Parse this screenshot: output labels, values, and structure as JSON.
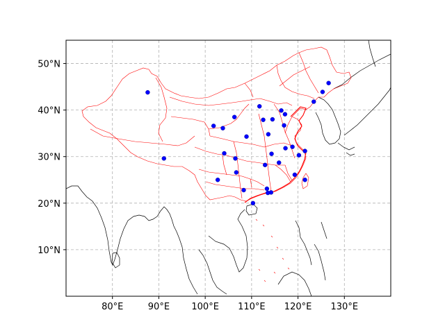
{
  "chart_data": {
    "type": "scatter",
    "title": "",
    "projection": "plate-carree",
    "xlim": [
      70,
      140
    ],
    "ylim": [
      0,
      55
    ],
    "grid": true,
    "x_ticks": [
      80,
      90,
      100,
      110,
      120,
      130
    ],
    "y_ticks": [
      10,
      20,
      30,
      40,
      50
    ],
    "x_tick_labels": [
      "80°E",
      "90°E",
      "100°E",
      "110°E",
      "120°E",
      "130°E"
    ],
    "y_tick_labels": [
      "10°N",
      "20°N",
      "30°N",
      "40°N",
      "50°N"
    ],
    "colors": {
      "points": "#0000ff",
      "province_borders": "#ff0000",
      "coastlines": "#000000",
      "grid": "#b0b0b0"
    },
    "points": [
      {
        "lon": 87.6,
        "lat": 43.8
      },
      {
        "lon": 91.1,
        "lat": 29.6
      },
      {
        "lon": 101.8,
        "lat": 36.6
      },
      {
        "lon": 103.8,
        "lat": 36.1
      },
      {
        "lon": 106.3,
        "lat": 38.5
      },
      {
        "lon": 108.9,
        "lat": 34.3
      },
      {
        "lon": 111.7,
        "lat": 40.8
      },
      {
        "lon": 112.5,
        "lat": 37.9
      },
      {
        "lon": 114.5,
        "lat": 38.0
      },
      {
        "lon": 116.4,
        "lat": 39.9
      },
      {
        "lon": 117.2,
        "lat": 39.1
      },
      {
        "lon": 113.6,
        "lat": 34.8
      },
      {
        "lon": 117.0,
        "lat": 36.7
      },
      {
        "lon": 118.8,
        "lat": 32.1
      },
      {
        "lon": 117.3,
        "lat": 31.8
      },
      {
        "lon": 121.5,
        "lat": 31.2
      },
      {
        "lon": 120.2,
        "lat": 30.3
      },
      {
        "lon": 114.3,
        "lat": 30.6
      },
      {
        "lon": 112.9,
        "lat": 28.2
      },
      {
        "lon": 115.9,
        "lat": 28.7
      },
      {
        "lon": 104.1,
        "lat": 30.7
      },
      {
        "lon": 106.5,
        "lat": 29.6
      },
      {
        "lon": 106.7,
        "lat": 26.6
      },
      {
        "lon": 102.7,
        "lat": 25.0
      },
      {
        "lon": 108.3,
        "lat": 22.8
      },
      {
        "lon": 113.3,
        "lat": 23.1
      },
      {
        "lon": 114.2,
        "lat": 22.3
      },
      {
        "lon": 113.5,
        "lat": 22.2
      },
      {
        "lon": 110.3,
        "lat": 20.0
      },
      {
        "lon": 119.3,
        "lat": 26.1
      },
      {
        "lon": 121.5,
        "lat": 25.0
      },
      {
        "lon": 123.4,
        "lat": 41.8
      },
      {
        "lon": 125.3,
        "lat": 43.9
      },
      {
        "lon": 126.6,
        "lat": 45.8
      }
    ]
  }
}
